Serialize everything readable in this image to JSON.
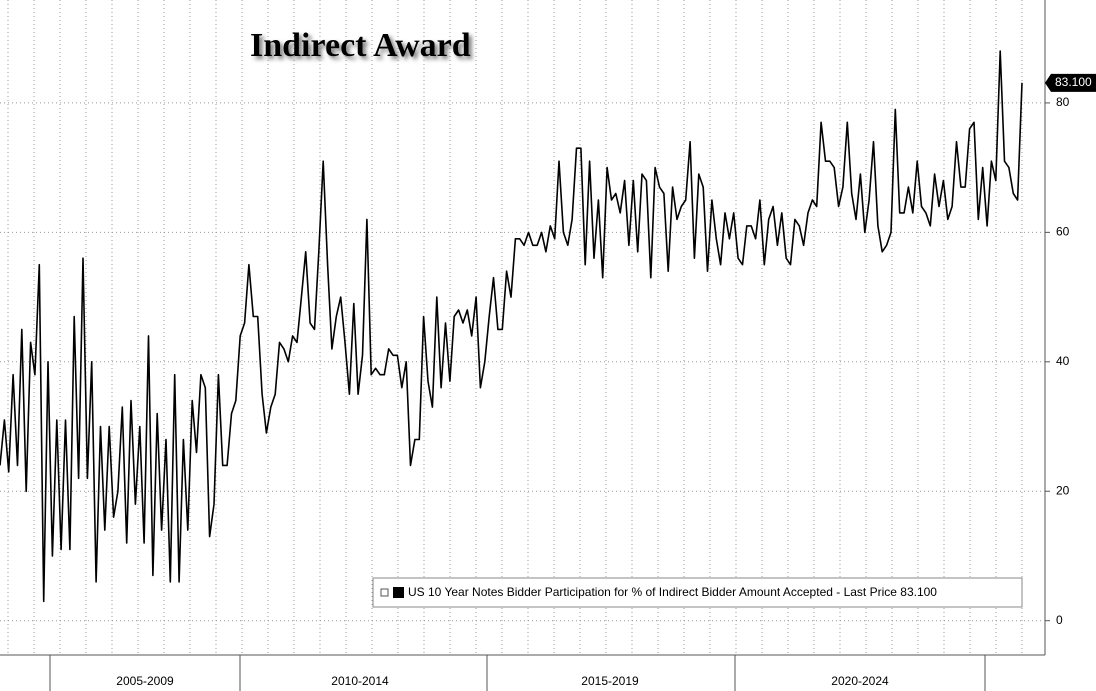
{
  "chart_data": {
    "type": "line",
    "title": "Indirect Award",
    "periods": [
      "2005-2009",
      "2010-2014",
      "2015-2019",
      "2020-2024"
    ],
    "series": [
      {
        "name": "US 10 Year Notes Bidder Participation for % of Indirect Bidder Amount Accepted - Last Price 83.100",
        "color": "#000000",
        "values": [
          24,
          31,
          23,
          38,
          24,
          45,
          20,
          43,
          38,
          55,
          3,
          40,
          10,
          31,
          11,
          31,
          11,
          47,
          22,
          56,
          22,
          40,
          6,
          30,
          14,
          30,
          16,
          20,
          33,
          12,
          34,
          18,
          30,
          12,
          44,
          7,
          32,
          14,
          28,
          6,
          38,
          6,
          28,
          14,
          34,
          26,
          38,
          36,
          13,
          18,
          38,
          24,
          24,
          32,
          34,
          44,
          46,
          55,
          47,
          47,
          35,
          29,
          33,
          35,
          43,
          42,
          40,
          44,
          43,
          50,
          57,
          46,
          45,
          57,
          71,
          55,
          42,
          47,
          50,
          43,
          35,
          49,
          35,
          41,
          62,
          38,
          39,
          38,
          38,
          42,
          41,
          41,
          36,
          40,
          24,
          28,
          28,
          47,
          37,
          33,
          50,
          36,
          46,
          37,
          47,
          48,
          46,
          48,
          44,
          50,
          36,
          40,
          47,
          53,
          45,
          45,
          54,
          50,
          59,
          59,
          58,
          60,
          58,
          58,
          60,
          57,
          61,
          59,
          71,
          60,
          58,
          62,
          73,
          73,
          55,
          71,
          56,
          65,
          53,
          70,
          65,
          66,
          63,
          68,
          58,
          68,
          57,
          69,
          68,
          53,
          70,
          67,
          66,
          54,
          67,
          62,
          64,
          65,
          74,
          56,
          69,
          67,
          54,
          65,
          59,
          55,
          63,
          59,
          63,
          56,
          55,
          61,
          61,
          59,
          65,
          55,
          62,
          64,
          58,
          63,
          56,
          55,
          62,
          61,
          58,
          63,
          65,
          64,
          77,
          71,
          71,
          70,
          64,
          67,
          77,
          66,
          62,
          69,
          60,
          65,
          74,
          61,
          57,
          58,
          60,
          79,
          63,
          63,
          67,
          63,
          71,
          64,
          63,
          61,
          69,
          64,
          68,
          62,
          64,
          74,
          67,
          67,
          76,
          77,
          62,
          70,
          61,
          71,
          68,
          88,
          71,
          70,
          66,
          65,
          83.1
        ]
      }
    ],
    "last_price_label": "83.100",
    "ylim": [
      -5.3,
      95.9
    ],
    "yticks": [
      0,
      20,
      40,
      60,
      80
    ],
    "grid": true
  }
}
